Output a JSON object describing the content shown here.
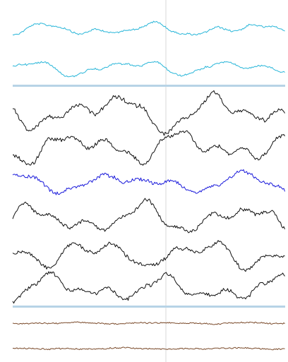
{
  "viewer": {
    "groups": [
      {
        "id": "top",
        "channel_count": 2,
        "color": "#29b6d9"
      },
      {
        "id": "middle",
        "channel_count": 6,
        "color": "#111111",
        "highlight_channel_index": 2,
        "highlight_color": "#1a1adb"
      },
      {
        "id": "bottom",
        "channel_count": 2,
        "color": "#7a4a2a"
      }
    ],
    "separator_color": "#b7d3e6",
    "cursor_color": "#d8d8d8"
  }
}
